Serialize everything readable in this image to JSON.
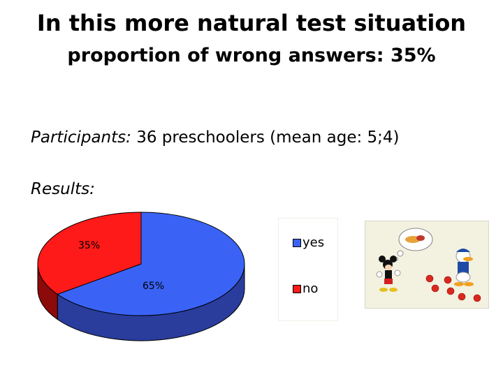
{
  "slide": {
    "title_line1": "In this more natural test situation",
    "title_line2": "proportion of wrong answers: 35%",
    "participants_label": "Participants:",
    "participants_text": " 36 preschoolers (mean age: 5;4)",
    "results_label": "Results:"
  },
  "chart_data": {
    "type": "pie",
    "categories": [
      "yes",
      "no"
    ],
    "values": [
      65,
      35
    ],
    "data_labels": [
      "65%",
      "35%"
    ],
    "colors": [
      "#3a63f6",
      "#ff1a1a"
    ],
    "side_colors": [
      "#2a3c9c",
      "#8c0a0a"
    ],
    "legend": [
      {
        "label": "yes",
        "color": "#3a63f6"
      },
      {
        "label": "no",
        "color": "#ff1a1a"
      }
    ],
    "legend_position": "right",
    "three_d": true
  },
  "illustration": {
    "description_icon": "cartoon-characters-apples-icon"
  }
}
